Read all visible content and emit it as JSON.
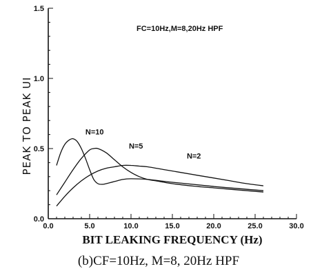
{
  "chart_data": {
    "type": "line",
    "annotation": "FC=10Hz,M=8,20Hz  HPF",
    "xlabel": "BIT LEAKING FREQUENCY (Hz)",
    "ylabel": "PEAK TO PEAK UI",
    "xlim": [
      0,
      30
    ],
    "ylim": [
      0,
      1.5
    ],
    "x_ticks": [
      "0.0",
      "5.0",
      "10.0",
      "15.0",
      "20.0",
      "25.0",
      "30.0"
    ],
    "y_ticks": [
      "0.0",
      "0.5",
      "1.0",
      "1.5"
    ],
    "grid": false,
    "series": [
      {
        "name": "N=10",
        "x": [
          1,
          1.5,
          2,
          2.5,
          3,
          3.5,
          4,
          4.5,
          5,
          5.5,
          6,
          6.5,
          7,
          8,
          9,
          10,
          12,
          15,
          20,
          26
        ],
        "y": [
          0.38,
          0.47,
          0.53,
          0.56,
          0.57,
          0.55,
          0.5,
          0.43,
          0.35,
          0.28,
          0.25,
          0.245,
          0.25,
          0.265,
          0.28,
          0.285,
          0.28,
          0.26,
          0.23,
          0.2
        ]
      },
      {
        "name": "N=5",
        "x": [
          1,
          2,
          3,
          4,
          5,
          5.5,
          6,
          7,
          8,
          9,
          10,
          11,
          12,
          13,
          15,
          18,
          20,
          22,
          26
        ],
        "y": [
          0.17,
          0.26,
          0.35,
          0.43,
          0.49,
          0.5,
          0.5,
          0.47,
          0.42,
          0.37,
          0.33,
          0.3,
          0.28,
          0.27,
          0.25,
          0.23,
          0.22,
          0.21,
          0.19
        ]
      },
      {
        "name": "N=2",
        "x": [
          1,
          2,
          3,
          4,
          5,
          6,
          7,
          8,
          9,
          10,
          11,
          12,
          14,
          16,
          18,
          20,
          22,
          24,
          26
        ],
        "y": [
          0.09,
          0.16,
          0.22,
          0.27,
          0.31,
          0.34,
          0.36,
          0.37,
          0.38,
          0.38,
          0.375,
          0.37,
          0.35,
          0.33,
          0.31,
          0.29,
          0.27,
          0.25,
          0.235
        ]
      }
    ],
    "series_label_positions": [
      {
        "name": "N=10",
        "x": 5.6,
        "y": 0.6
      },
      {
        "name": "N=5",
        "x": 10.6,
        "y": 0.5
      },
      {
        "name": "N=2",
        "x": 17.6,
        "y": 0.43
      }
    ],
    "caption": "(b)CF=10Hz,  M=8, 20Hz  HPF"
  }
}
